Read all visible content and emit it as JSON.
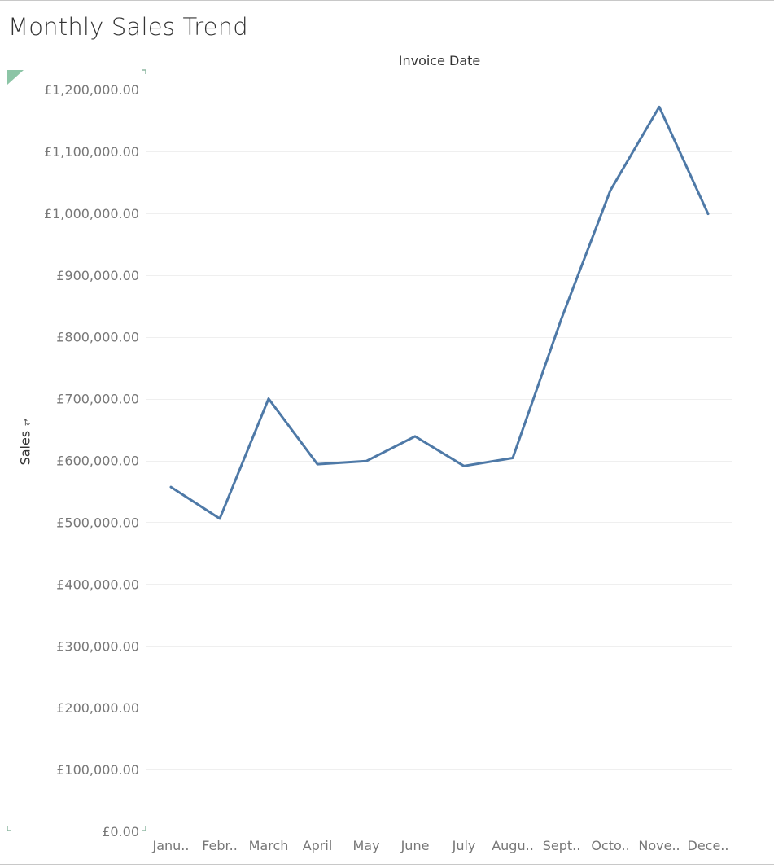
{
  "view": {
    "title": "Monthly Sales Trend",
    "column_header": "Invoice Date",
    "row_header": "Sales",
    "sort_icon": "sort-descending-icon"
  },
  "chart_data": {
    "type": "line",
    "title": "Monthly Sales Trend",
    "xlabel": "Invoice Date",
    "ylabel": "Sales",
    "categories": [
      "Janu..",
      "Febr..",
      "March",
      "April",
      "May",
      "June",
      "July",
      "Augu..",
      "Sept..",
      "Octo..",
      "Nove..",
      "Dece.."
    ],
    "series": [
      {
        "values": [
          557000,
          506000,
          700000,
          594000,
          599000,
          639000,
          591000,
          604000,
          830000,
          1037000,
          1172000,
          999000
        ],
        "color": "#4e79a7"
      }
    ],
    "ylim": [
      0,
      1200000
    ],
    "yticks": [
      0,
      100000,
      200000,
      300000,
      400000,
      500000,
      600000,
      700000,
      800000,
      900000,
      1000000,
      1100000,
      1200000
    ],
    "ytick_labels": [
      "£0.00",
      "£100,000.00",
      "£200,000.00",
      "£300,000.00",
      "£400,000.00",
      "£500,000.00",
      "£600,000.00",
      "£700,000.00",
      "£800,000.00",
      "£900,000.00",
      "£1,000,000.00",
      "£1,100,000.00",
      "£1,200,000.00"
    ],
    "grid": true,
    "legend": "none"
  }
}
